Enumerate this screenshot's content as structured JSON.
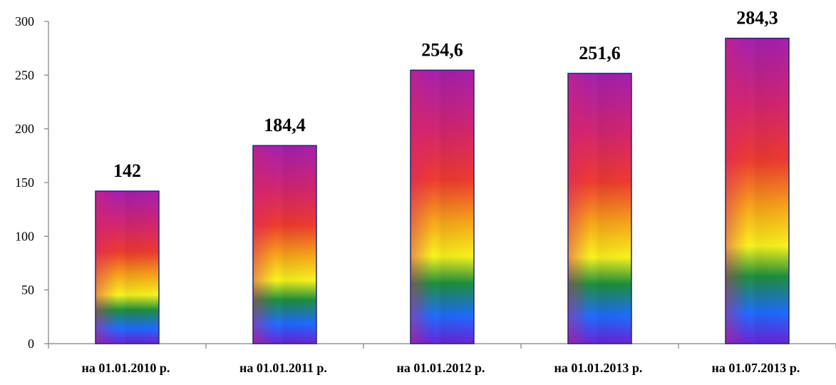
{
  "chart_data": {
    "type": "bar",
    "title": "",
    "xlabel": "",
    "ylabel": "",
    "categories": [
      "на 01.01.2010 р.",
      "на 01.01.2011 р.",
      "на 01.01.2012 р.",
      "на 01.01.2013 р.",
      "на 01.07.2013 р."
    ],
    "values": [
      142,
      184.4,
      254.6,
      251.6,
      284.3
    ],
    "data_labels": [
      "142",
      "184,4",
      "254,6",
      "251,6",
      "284,3"
    ],
    "ylim": [
      0,
      300
    ],
    "yticks": [
      0,
      50,
      100,
      150,
      200,
      250,
      300
    ],
    "ytick_labels": [
      "0",
      "50",
      "100",
      "150",
      "200",
      "250",
      "300"
    ],
    "grid": false,
    "legend": "none",
    "bar_fill": "rainbow-gradient",
    "colors": {
      "axis": "#808080",
      "bar_outline": "#1f2a6b",
      "gradient": [
        "#a51fb0",
        "#d3256f",
        "#ee3a2f",
        "#f7a21a",
        "#f8f21c",
        "#1d8f3a",
        "#1e6bff",
        "#6a22d9"
      ]
    }
  }
}
